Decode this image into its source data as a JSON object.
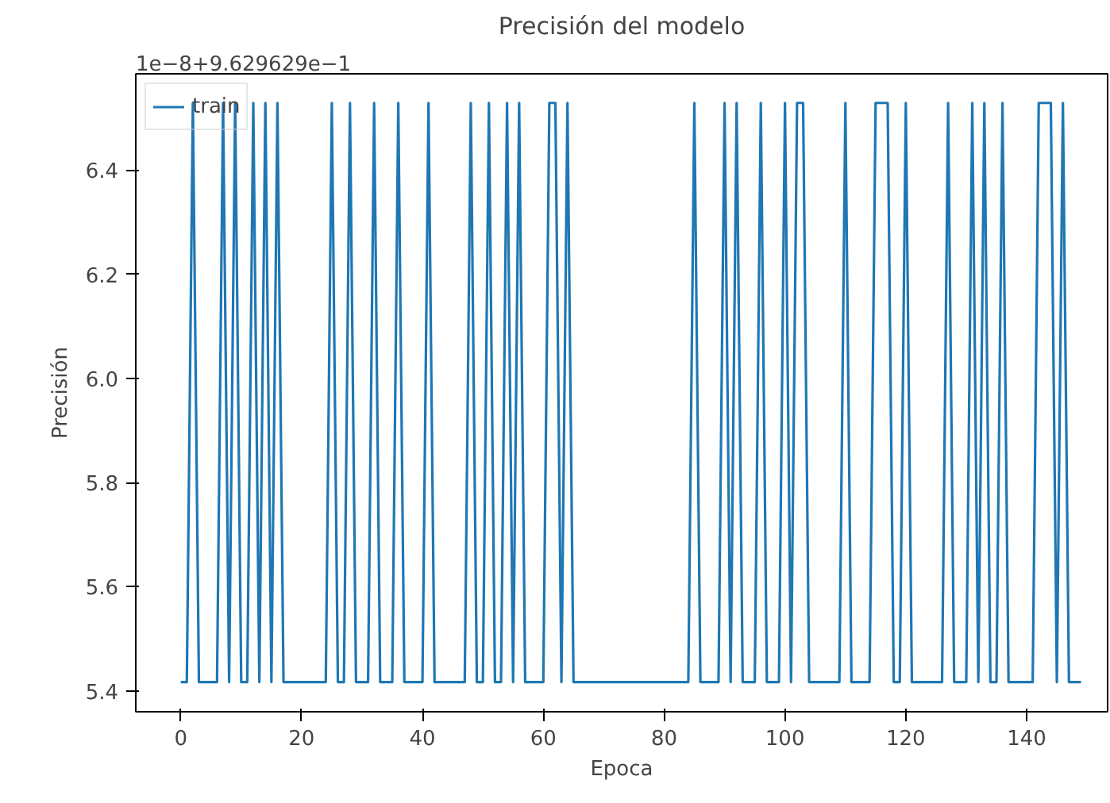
{
  "chart_data": {
    "type": "line",
    "title": "Precisión del modelo",
    "xlabel": "Epoca",
    "ylabel": "Precisión",
    "annotations": [
      "1e−8+9.629629e−1"
    ],
    "x": [
      0,
      1,
      2,
      3,
      4,
      5,
      6,
      7,
      8,
      9,
      10,
      11,
      12,
      13,
      14,
      15,
      16,
      17,
      18,
      19,
      20,
      21,
      22,
      23,
      24,
      25,
      26,
      27,
      28,
      29,
      30,
      31,
      32,
      33,
      34,
      35,
      36,
      37,
      38,
      39,
      40,
      41,
      42,
      43,
      44,
      45,
      46,
      47,
      48,
      49,
      50,
      51,
      52,
      53,
      54,
      55,
      56,
      57,
      58,
      59,
      60,
      61,
      62,
      63,
      64,
      65,
      66,
      67,
      68,
      69,
      70,
      71,
      72,
      73,
      74,
      75,
      76,
      77,
      78,
      79,
      80,
      81,
      82,
      83,
      84,
      85,
      86,
      87,
      88,
      89,
      90,
      91,
      92,
      93,
      94,
      95,
      96,
      97,
      98,
      99,
      100,
      101,
      102,
      103,
      104,
      105,
      106,
      107,
      108,
      109,
      110,
      111,
      112,
      113,
      114,
      115,
      116,
      117,
      118,
      119,
      120,
      121,
      122,
      123,
      124,
      125,
      126,
      127,
      128,
      129,
      130,
      131,
      132,
      133,
      134,
      135,
      136,
      137,
      138,
      139,
      140,
      141,
      142,
      143,
      144,
      145,
      146,
      147,
      148,
      149
    ],
    "series": [
      {
        "name": "train",
        "color": "#1f77b4",
        "values": [
          5.417,
          5.417,
          6.529,
          5.417,
          5.417,
          5.417,
          5.417,
          6.529,
          5.417,
          6.529,
          5.417,
          5.417,
          6.529,
          5.417,
          6.529,
          5.417,
          6.529,
          5.417,
          5.417,
          5.417,
          5.417,
          5.417,
          5.417,
          5.417,
          5.417,
          6.529,
          5.417,
          5.417,
          6.529,
          5.417,
          5.417,
          5.417,
          6.529,
          5.417,
          5.417,
          5.417,
          6.529,
          5.417,
          5.417,
          5.417,
          5.417,
          6.529,
          5.417,
          5.417,
          5.417,
          5.417,
          5.417,
          5.417,
          6.529,
          5.417,
          5.417,
          6.529,
          5.417,
          5.417,
          6.529,
          5.417,
          6.529,
          5.417,
          5.417,
          5.417,
          5.417,
          6.529,
          6.529,
          5.417,
          6.529,
          5.417,
          5.417,
          5.417,
          5.417,
          5.417,
          5.417,
          5.417,
          5.417,
          5.417,
          5.417,
          5.417,
          5.417,
          5.417,
          5.417,
          5.417,
          5.417,
          5.417,
          5.417,
          5.417,
          5.417,
          6.529,
          5.417,
          5.417,
          5.417,
          5.417,
          6.529,
          5.417,
          6.529,
          5.417,
          5.417,
          5.417,
          6.529,
          5.417,
          5.417,
          5.417,
          6.529,
          5.417,
          6.529,
          6.529,
          5.417,
          5.417,
          5.417,
          5.417,
          5.417,
          5.417,
          6.529,
          5.417,
          5.417,
          5.417,
          5.417,
          6.529,
          6.529,
          6.529,
          5.417,
          5.417,
          6.529,
          5.417,
          5.417,
          5.417,
          5.417,
          5.417,
          5.417,
          6.529,
          5.417,
          5.417,
          5.417,
          6.529,
          5.417,
          6.529,
          5.417,
          5.417,
          6.529,
          5.417,
          5.417,
          5.417,
          5.417,
          5.417,
          6.529,
          6.529,
          6.529,
          5.417,
          6.529,
          5.417,
          5.417,
          5.417
        ]
      }
    ],
    "xlim": [
      -7.45,
      153.4
    ],
    "ylim": [
      5.36,
      6.585
    ],
    "xticks": [
      0,
      20,
      40,
      60,
      80,
      100,
      120,
      140
    ],
    "yticks": [
      {
        "value": 5.4,
        "label": "5.4"
      },
      {
        "value": 5.6,
        "label": "5.6"
      },
      {
        "value": 5.8,
        "label": "5.8"
      },
      {
        "value": 6.0,
        "label": "6.0"
      },
      {
        "value": 6.2,
        "label": "6.2"
      },
      {
        "value": 6.4,
        "label": "6.4"
      }
    ],
    "legend": "top left",
    "grid": false,
    "marker": "none",
    "line_style": "solid"
  }
}
